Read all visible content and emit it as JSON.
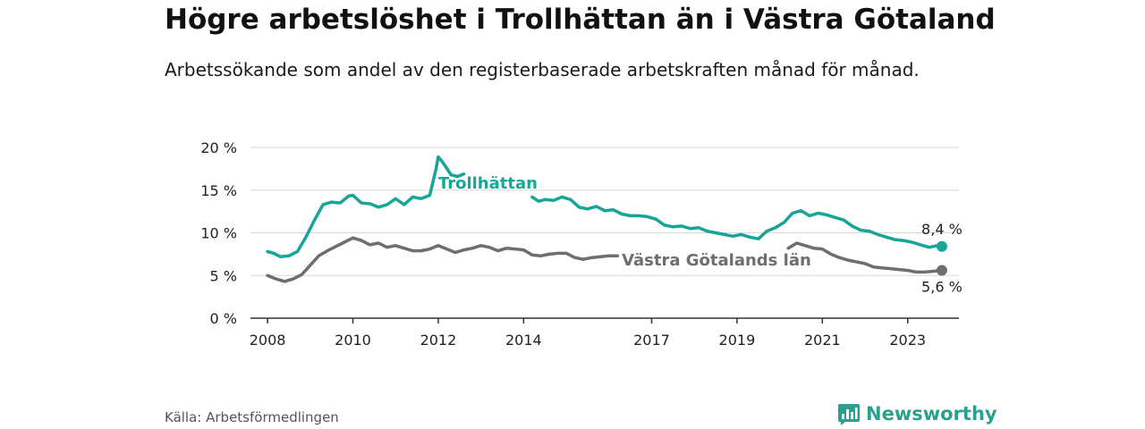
{
  "brand": {
    "name": "Newsworthy",
    "color": "#2ca08e"
  },
  "source": "Källa: Arbetsförmedlingen",
  "chart_data": {
    "type": "line",
    "title": "Högre arbetslöshet i Trollhättan än i Västra Götaland",
    "subtitle": "Arbetssökande som andel av den registerbaserade arbetskraften månad för månad.",
    "xlabel": "",
    "ylabel": "",
    "ylim": [
      0,
      20
    ],
    "xlim": [
      2007.6,
      2024.2
    ],
    "yticks": [
      0,
      5,
      10,
      15,
      20
    ],
    "ytick_labels": [
      "0 %",
      "5 %",
      "10 %",
      "15 %",
      "20 %"
    ],
    "xticks": [
      2008,
      2010,
      2012,
      2014,
      2017,
      2019,
      2021,
      2023
    ],
    "xtick_labels": [
      "2008",
      "2010",
      "2012",
      "2014",
      "2017",
      "2019",
      "2021",
      "2023"
    ],
    "grid": true,
    "series": [
      {
        "name": "Trollhättan",
        "color": "#16a596",
        "end_label": "8,4 %",
        "x": [
          2008.0,
          2008.15,
          2008.3,
          2008.5,
          2008.7,
          2008.9,
          2009.1,
          2009.3,
          2009.5,
          2009.7,
          2009.9,
          2010.0,
          2010.2,
          2010.4,
          2010.6,
          2010.8,
          2011.0,
          2011.2,
          2011.4,
          2011.6,
          2011.8,
          2011.95,
          2012.0,
          2012.1,
          2012.3,
          2012.45,
          2012.6,
          null,
          2014.2,
          2014.35,
          2014.5,
          2014.7,
          2014.9,
          2015.1,
          2015.3,
          2015.5,
          2015.7,
          2015.9,
          2016.1,
          2016.3,
          2016.5,
          2016.7,
          2016.9,
          2017.1,
          2017.3,
          2017.5,
          2017.7,
          2017.9,
          2018.1,
          2018.3,
          2018.5,
          2018.7,
          2018.9,
          2019.1,
          2019.3,
          2019.5,
          2019.7,
          2019.9,
          2020.1,
          2020.3,
          2020.5,
          2020.7,
          2020.9,
          2021.1,
          2021.3,
          2021.5,
          2021.7,
          2021.9,
          2022.1,
          2022.3,
          2022.5,
          2022.7,
          2022.9,
          2023.1,
          2023.3,
          2023.5,
          2023.7,
          2023.8
        ],
        "values": [
          7.8,
          7.6,
          7.2,
          7.3,
          7.8,
          9.5,
          11.5,
          13.3,
          13.6,
          13.5,
          14.3,
          14.4,
          13.5,
          13.4,
          13.0,
          13.3,
          14.0,
          13.3,
          14.2,
          14.0,
          14.4,
          17.5,
          18.9,
          18.3,
          16.8,
          16.6,
          16.9,
          null,
          14.2,
          13.7,
          13.9,
          13.8,
          14.2,
          13.9,
          13.0,
          12.8,
          13.1,
          12.6,
          12.7,
          12.2,
          12.0,
          12.0,
          11.9,
          11.6,
          10.9,
          10.7,
          10.8,
          10.5,
          10.6,
          10.2,
          10.0,
          9.8,
          9.6,
          9.8,
          9.5,
          9.3,
          10.2,
          10.6,
          11.2,
          12.3,
          12.6,
          12.0,
          12.3,
          12.1,
          11.8,
          11.5,
          10.8,
          10.3,
          10.2,
          9.8,
          9.5,
          9.2,
          9.1,
          8.9,
          8.6,
          8.3,
          8.5,
          8.4
        ]
      },
      {
        "name": "Västra Götalands län",
        "color": "#6e6d72",
        "end_label": "5,6 %",
        "x": [
          2008.0,
          2008.2,
          2008.4,
          2008.6,
          2008.8,
          2009.0,
          2009.2,
          2009.4,
          2009.6,
          2009.8,
          2010.0,
          2010.2,
          2010.4,
          2010.6,
          2010.8,
          2011.0,
          2011.2,
          2011.4,
          2011.6,
          2011.8,
          2012.0,
          2012.2,
          2012.4,
          2012.6,
          2012.8,
          2013.0,
          2013.2,
          2013.4,
          2013.6,
          2013.8,
          2014.0,
          2014.2,
          2014.4,
          2014.6,
          2014.8,
          2015.0,
          2015.2,
          2015.4,
          2015.6,
          2015.8,
          2016.0,
          2016.2,
          null,
          2020.2,
          2020.4,
          2020.6,
          2020.8,
          2021.0,
          2021.2,
          2021.4,
          2021.6,
          2021.8,
          2022.0,
          2022.2,
          2022.4,
          2022.6,
          2022.8,
          2023.0,
          2023.2,
          2023.4,
          2023.6,
          2023.8
        ],
        "values": [
          5.0,
          4.6,
          4.3,
          4.6,
          5.1,
          6.2,
          7.3,
          7.9,
          8.4,
          8.9,
          9.4,
          9.1,
          8.6,
          8.8,
          8.3,
          8.5,
          8.2,
          7.9,
          7.9,
          8.1,
          8.5,
          8.1,
          7.7,
          8.0,
          8.2,
          8.5,
          8.3,
          7.9,
          8.2,
          8.1,
          8.0,
          7.4,
          7.3,
          7.5,
          7.6,
          7.6,
          7.1,
          6.9,
          7.1,
          7.2,
          7.3,
          7.3,
          null,
          8.2,
          8.8,
          8.5,
          8.2,
          8.1,
          7.5,
          7.1,
          6.8,
          6.6,
          6.4,
          6.0,
          5.9,
          5.8,
          5.7,
          5.6,
          5.4,
          5.4,
          5.5,
          5.6
        ]
      }
    ],
    "annotations": [
      {
        "text": "Trollhättan",
        "series": "Trollhättan",
        "at_x": 2012.0,
        "at_y": 15.2
      },
      {
        "text": "Västra Götalands län",
        "series": "Västra Götalands län",
        "at_x": 2016.3,
        "at_y": 6.2
      }
    ]
  }
}
